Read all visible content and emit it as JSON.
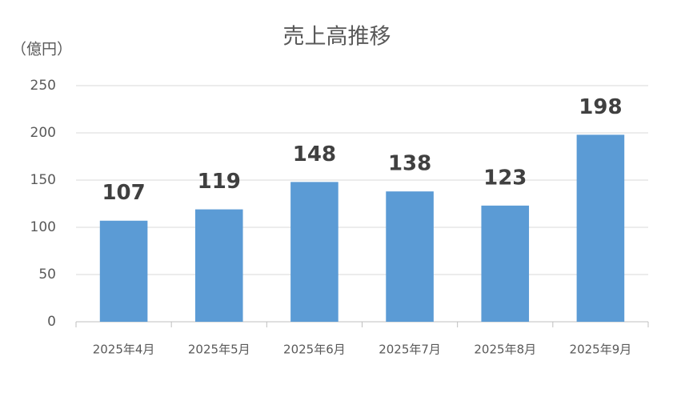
{
  "chart_data": {
    "type": "bar",
    "title": "売上高推移",
    "y_axis_label": "（億円）",
    "categories": [
      "2025年4月",
      "2025年5月",
      "2025年6月",
      "2025年7月",
      "2025年8月",
      "2025年9月"
    ],
    "values": [
      107,
      119,
      148,
      138,
      123,
      198
    ],
    "color": "#5b9bd5",
    "ylim": [
      0,
      250
    ],
    "yticks": [
      0,
      50,
      100,
      150,
      200,
      250
    ],
    "grid": true
  }
}
